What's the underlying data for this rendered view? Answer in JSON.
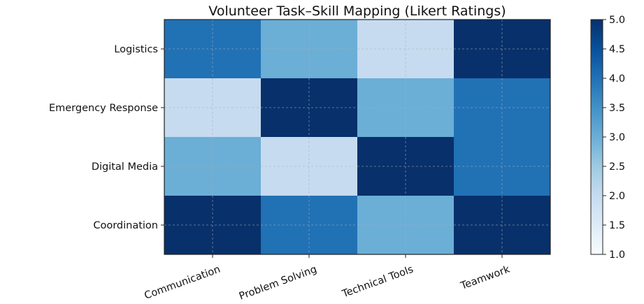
{
  "chart_data": {
    "type": "heatmap",
    "title": "Volunteer Task–Skill Mapping (Likert Ratings)",
    "xlabel": "",
    "ylabel": "",
    "columns": [
      "Communication",
      "Problem Solving",
      "Technical Tools",
      "Teamwork"
    ],
    "rows": [
      "Logistics",
      "Emergency Response",
      "Digital Media",
      "Coordination"
    ],
    "values": [
      [
        4,
        3,
        2,
        5
      ],
      [
        2,
        5,
        3,
        4
      ],
      [
        3,
        2,
        5,
        4
      ],
      [
        5,
        4,
        3,
        5
      ]
    ],
    "colormap": "Blues",
    "color_range": [
      1.0,
      5.0
    ],
    "colorbar_ticks": [
      "1.0",
      "1.5",
      "2.0",
      "2.5",
      "3.0",
      "3.5",
      "4.0",
      "4.5",
      "5.0"
    ],
    "grid": true,
    "colorbar_position": "right"
  }
}
